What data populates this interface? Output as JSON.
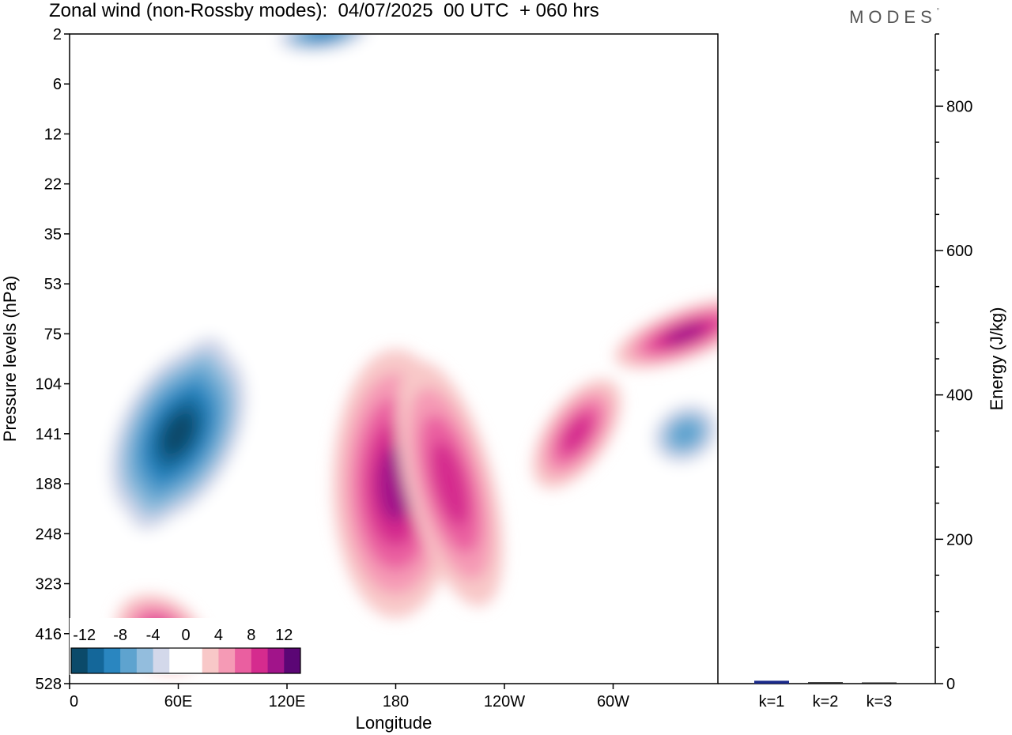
{
  "title": "Zonal wind (non-Rossby modes):  04/07/2025  00 UTC  + 060 hrs",
  "brand": "MODES",
  "brand_mark": "°",
  "chart_data": [
    {
      "type": "heatmap",
      "title": "Zonal wind (non-Rossby modes):  04/07/2025  00 UTC  + 060 hrs",
      "xlabel": "Longitude",
      "ylabel": "Pressure levels (hPa)",
      "x_ticks": [
        "0",
        "60E",
        "120E",
        "180",
        "120W",
        "60W"
      ],
      "y_ticks": [
        "2",
        "6",
        "12",
        "22",
        "35",
        "53",
        "75",
        "104",
        "141",
        "188",
        "248",
        "323",
        "416",
        "528"
      ],
      "legend": {
        "placement": "bottom-left",
        "levels": [
          "-12",
          "-8",
          "-4",
          "0",
          "4",
          "8",
          "12"
        ],
        "colors": [
          "#0b4a6a",
          "#14679a",
          "#2a86c0",
          "#5ea3cf",
          "#93bddd",
          "#d3d8ea",
          "#ffffff",
          "#ffffff",
          "#f8c8c8",
          "#f59ab5",
          "#ea5fa0",
          "#d52b8e",
          "#a1148a",
          "#5b0675"
        ]
      },
      "features": [
        {
          "name": "neg-jet-60E",
          "center": [
            "60E",
            "141"
          ],
          "peak": -14
        },
        {
          "name": "neg-upper-140E",
          "center": [
            "140E",
            "2"
          ],
          "peak": -10
        },
        {
          "name": "pos-jet-180",
          "center": [
            "180",
            "188"
          ],
          "peak": 10
        },
        {
          "name": "pos-jet-150W",
          "center": [
            "150W",
            "188"
          ],
          "peak": 8
        },
        {
          "name": "pos-band-80W",
          "center": [
            "80W",
            "141"
          ],
          "peak": 8
        },
        {
          "name": "pos-band-20W",
          "center": [
            "20W",
            "75"
          ],
          "peak": 10
        },
        {
          "name": "neg-cell-20W",
          "center": [
            "20W",
            "141"
          ],
          "peak": -8
        },
        {
          "name": "pos-cell-50E",
          "center": [
            "50E",
            "416"
          ],
          "peak": 8
        }
      ]
    },
    {
      "type": "bar",
      "categories": [
        "k=1",
        "k=2",
        "k=3"
      ],
      "values": [
        4,
        2,
        1
      ],
      "colors": [
        "#1a2a8a",
        "#222222",
        "#222222"
      ],
      "ylabel": "Energy (J/kg)",
      "ylim": [
        0,
        900
      ],
      "y_ticks": [
        0,
        200,
        400,
        600,
        800
      ]
    }
  ]
}
